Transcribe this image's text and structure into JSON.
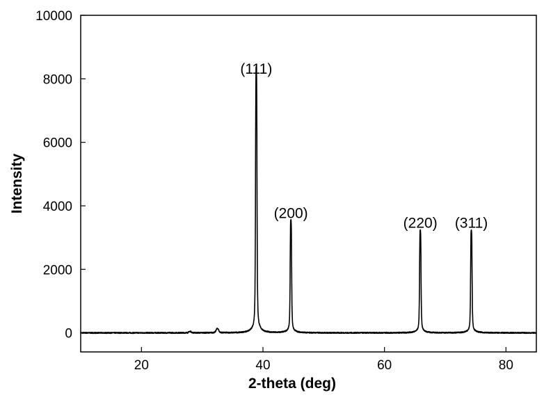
{
  "chart_data": {
    "type": "line",
    "title": "",
    "xlabel": "2-theta (deg)",
    "ylabel": "Intensity",
    "xlim": [
      10,
      85
    ],
    "ylim": [
      -600,
      10000
    ],
    "xticks": [
      20,
      40,
      60,
      80
    ],
    "yticks": [
      0,
      2000,
      4000,
      6000,
      8000,
      10000
    ],
    "grid": false,
    "legend": "none",
    "line_color": "#000000",
    "baseline": 0,
    "peaks": [
      {
        "label": "(111)",
        "x": 38.9,
        "y": 7900
      },
      {
        "label": "(200)",
        "x": 44.6,
        "y": 3350
      },
      {
        "label": "(220)",
        "x": 65.9,
        "y": 3050
      },
      {
        "label": "(311)",
        "x": 74.3,
        "y": 3050
      }
    ],
    "minor_peaks": [
      {
        "x": 32.5,
        "y": 120
      },
      {
        "x": 28.0,
        "y": 40
      }
    ]
  }
}
